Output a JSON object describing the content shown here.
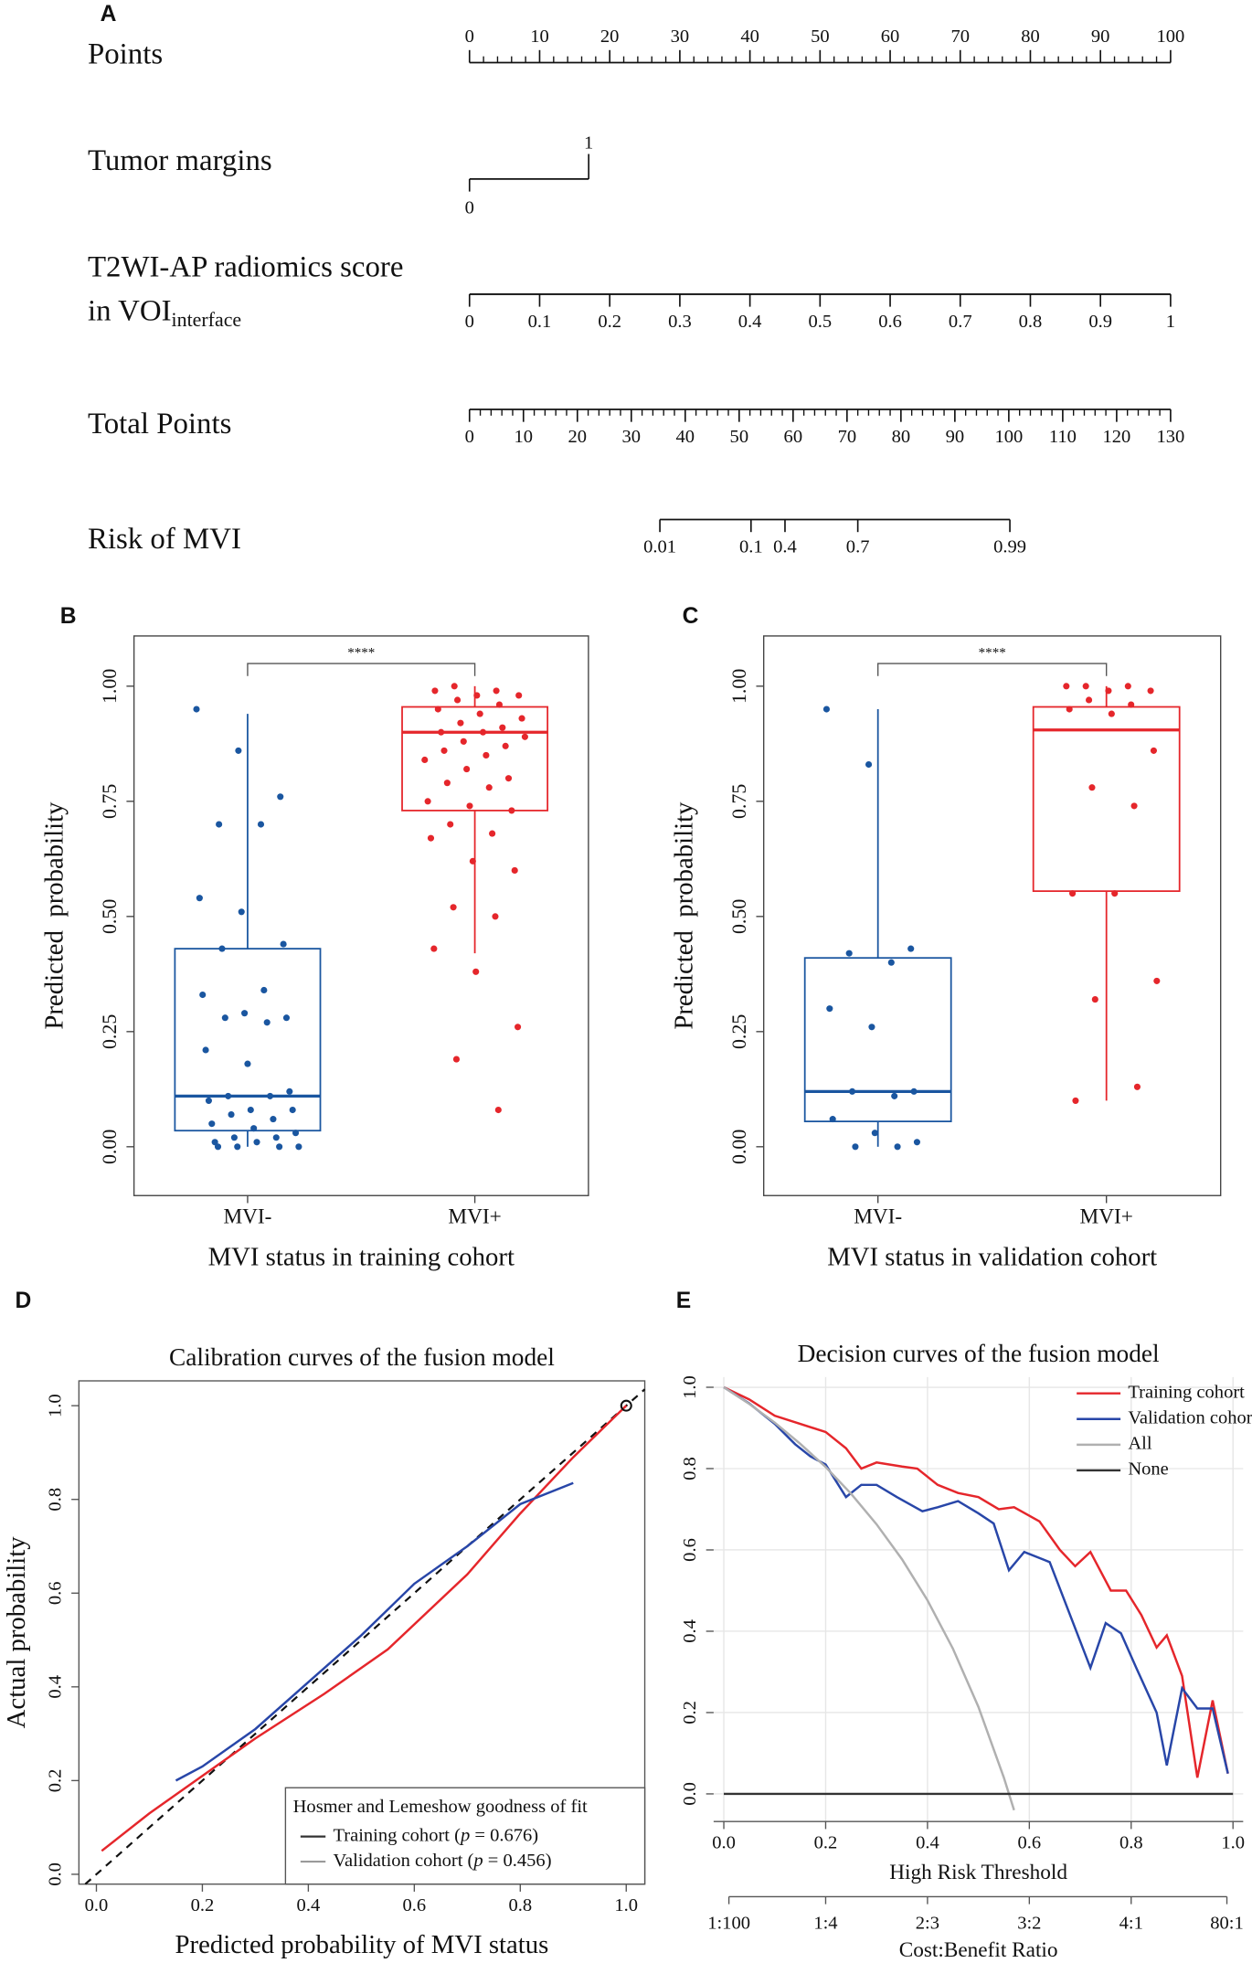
{
  "chart_data": [
    {
      "type": "nomogram",
      "panel": "A",
      "xlim": [
        0,
        100
      ],
      "total_lim": [
        0,
        130
      ],
      "rows": [
        {
          "label": [
            "Points"
          ],
          "ticks": [
            0,
            10,
            20,
            30,
            40,
            50,
            60,
            70,
            80,
            90,
            100
          ],
          "at": [
            0,
            10,
            20,
            30,
            40,
            50,
            60,
            70,
            80,
            90,
            100
          ],
          "minor_step": 2,
          "tick_side": "up"
        },
        {
          "label": [
            "Tumor margins"
          ],
          "ticks": [
            0,
            1
          ],
          "at": [
            0,
            17
          ],
          "tick_side": "alternate"
        },
        {
          "label": [
            "T2WI-AP radiomics score",
            "in VOI"
          ],
          "label_sub": "interface",
          "ticks": [
            0,
            0.1,
            0.2,
            0.3,
            0.4,
            0.5,
            0.6,
            0.7,
            0.8,
            0.9,
            1
          ],
          "at": [
            0,
            10,
            20,
            30,
            40,
            50,
            60,
            70,
            80,
            90,
            100
          ],
          "tick_side": "down"
        },
        {
          "label": [
            "Total Points"
          ],
          "scale": "total",
          "ticks": [
            0,
            10,
            20,
            30,
            40,
            50,
            60,
            70,
            80,
            90,
            100,
            110,
            120,
            130
          ],
          "at": [
            0,
            10,
            20,
            30,
            40,
            50,
            60,
            70,
            80,
            90,
            100,
            110,
            120,
            130
          ],
          "minor_step": 2,
          "tick_side": "down"
        },
        {
          "label": [
            "Risk of MVI"
          ],
          "scale": "total",
          "ticks": [
            0.01,
            0.1,
            0.4,
            0.7,
            0.99
          ],
          "at": [
            35.3,
            52.2,
            58.5,
            72,
            100.2
          ],
          "tick_side": "down"
        }
      ]
    },
    {
      "type": "box",
      "panel": "B",
      "categories": [
        "MVI-",
        "MVI+"
      ],
      "colors": [
        "#1a56a0",
        "#e5262b"
      ],
      "boxes": [
        {
          "low": 0,
          "q1": 0.035,
          "median": 0.11,
          "q3": 0.43,
          "high": 0.94
        },
        {
          "low": 0.42,
          "q1": 0.73,
          "median": 0.9,
          "q3": 0.955,
          "high": 1.0
        }
      ],
      "points": [
        [
          0.95,
          0.86,
          0.76,
          0.7,
          0.7,
          0.54,
          0.51,
          0.44,
          0.43,
          0.34,
          0.33,
          0.29,
          0.28,
          0.28,
          0.27,
          0.21,
          0.18,
          0.12,
          0.11,
          0.11,
          0.1,
          0.08,
          0.08,
          0.07,
          0.06,
          0.05,
          0.04,
          0.03,
          0.02,
          0.02,
          0.01,
          0.01,
          0,
          0,
          0,
          0
        ],
        [
          1.0,
          0.99,
          0.99,
          0.98,
          0.98,
          0.97,
          0.96,
          0.95,
          0.94,
          0.93,
          0.92,
          0.91,
          0.9,
          0.9,
          0.89,
          0.88,
          0.87,
          0.86,
          0.85,
          0.84,
          0.82,
          0.8,
          0.79,
          0.78,
          0.75,
          0.74,
          0.73,
          0.7,
          0.68,
          0.67,
          0.62,
          0.6,
          0.52,
          0.5,
          0.43,
          0.38,
          0.26,
          0.19,
          0.08
        ]
      ],
      "ylim": [
        -0.106,
        1.109
      ],
      "yticks": [
        {
          "value": 0,
          "label": "0.00"
        },
        {
          "value": 0.25,
          "label": "0.25"
        },
        {
          "value": 0.5,
          "label": "0.50"
        },
        {
          "value": 0.75,
          "label": "0.75"
        },
        {
          "value": 1,
          "label": "1.00"
        }
      ],
      "ylabel": "Predicted  probability",
      "xlabel": "MVI status in training cohort",
      "annotation": "****"
    },
    {
      "type": "box",
      "panel": "C",
      "categories": [
        "MVI-",
        "MVI+"
      ],
      "colors": [
        "#1a56a0",
        "#e5262b"
      ],
      "boxes": [
        {
          "low": 0,
          "q1": 0.055,
          "median": 0.12,
          "q3": 0.41,
          "high": 0.95
        },
        {
          "low": 0.1,
          "q1": 0.555,
          "median": 0.905,
          "q3": 0.955,
          "high": 1.0
        }
      ],
      "points": [
        [
          0.95,
          0.83,
          0.43,
          0.42,
          0.4,
          0.3,
          0.26,
          0.12,
          0.12,
          0.11,
          0.06,
          0.03,
          0.01,
          0,
          0
        ],
        [
          1.0,
          1.0,
          1.0,
          0.99,
          0.99,
          0.97,
          0.96,
          0.95,
          0.94,
          0.86,
          0.78,
          0.74,
          0.55,
          0.55,
          0.36,
          0.32,
          0.13,
          0.1
        ]
      ],
      "ylim": [
        -0.106,
        1.109
      ],
      "yticks": [
        {
          "value": 0,
          "label": "0.00"
        },
        {
          "value": 0.25,
          "label": "0.25"
        },
        {
          "value": 0.5,
          "label": "0.50"
        },
        {
          "value": 0.75,
          "label": "0.75"
        },
        {
          "value": 1,
          "label": "1.00"
        }
      ],
      "ylabel": "Predicted  probability",
      "xlabel": "MVI status in validation cohort",
      "annotation": "****"
    },
    {
      "type": "line",
      "panel": "D",
      "title": "Calibration curves of the fusion model",
      "xlabel": "Predicted probability of MVI status",
      "ylabel": "Actual probability",
      "xlim": [
        -0.033,
        1.035
      ],
      "ylim": [
        -0.021,
        1.053
      ],
      "xticks": [
        {
          "value": 0,
          "label": "0.0"
        },
        {
          "value": 0.2,
          "label": "0.2"
        },
        {
          "value": 0.4,
          "label": "0.4"
        },
        {
          "value": 0.6,
          "label": "0.6"
        },
        {
          "value": 0.8,
          "label": "0.8"
        },
        {
          "value": 1,
          "label": "1.0"
        }
      ],
      "yticks": [
        {
          "value": 0,
          "label": "0.0"
        },
        {
          "value": 0.2,
          "label": "0.2"
        },
        {
          "value": 0.4,
          "label": "0.4"
        },
        {
          "value": 0.6,
          "label": "0.6"
        },
        {
          "value": 0.8,
          "label": "0.8"
        },
        {
          "value": 1,
          "label": "1.0"
        }
      ],
      "frame": true,
      "diagonal": "dashed",
      "series": [
        {
          "color": "#e5262b",
          "x": [
            0.01,
            0.1,
            0.2,
            0.3,
            0.43,
            0.55,
            0.7,
            0.8,
            0.9,
            1.0
          ],
          "values": [
            0.05,
            0.13,
            0.21,
            0.29,
            0.385,
            0.48,
            0.64,
            0.77,
            0.89,
            1.0
          ],
          "end_marker": true
        },
        {
          "color": "#2846a8",
          "x": [
            0.15,
            0.2,
            0.3,
            0.4,
            0.5,
            0.6,
            0.7,
            0.8,
            0.9
          ],
          "values": [
            0.2,
            0.23,
            0.31,
            0.41,
            0.51,
            0.62,
            0.7,
            0.79,
            0.835
          ]
        }
      ],
      "legend": {
        "title": "Hosmer and Lemeshow goodness of fit",
        "entries": [
          {
            "text": [
              "Training cohort (",
              "p",
              " = 0.676)"
            ],
            "color": "#333333"
          },
          {
            "text": [
              "Validation cohort (",
              "p",
              " = 0.456)"
            ],
            "color": "#9a9a9a"
          }
        ]
      }
    },
    {
      "type": "line",
      "panel": "E",
      "title": "Decision curves of the fusion model",
      "xlabel": "High Risk Threshold",
      "x2label": "Cost:Benefit Ratio",
      "xlim": [
        -0.02,
        1.02
      ],
      "ylim": [
        -0.068,
        1.025
      ],
      "xticks": [
        {
          "value": 0,
          "label": "0.0"
        },
        {
          "value": 0.2,
          "label": "0.2"
        },
        {
          "value": 0.4,
          "label": "0.4"
        },
        {
          "value": 0.6,
          "label": "0.6"
        },
        {
          "value": 0.8,
          "label": "0.8"
        },
        {
          "value": 1,
          "label": "1.0"
        }
      ],
      "x2ticks": [
        {
          "value": 0.01,
          "label": "1:100"
        },
        {
          "value": 0.2,
          "label": "1:4"
        },
        {
          "value": 0.4,
          "label": "2:3"
        },
        {
          "value": 0.6,
          "label": "3:2"
        },
        {
          "value": 0.8,
          "label": "4:1"
        },
        {
          "value": 0.988,
          "label": "80:1"
        }
      ],
      "yticks": [
        {
          "value": 0,
          "label": "0.0"
        },
        {
          "value": 0.2,
          "label": "0.2"
        },
        {
          "value": 0.4,
          "label": "0.4"
        },
        {
          "value": 0.6,
          "label": "0.6"
        },
        {
          "value": 0.8,
          "label": "0.8"
        },
        {
          "value": 1,
          "label": "1.0"
        }
      ],
      "grid": true,
      "legend": "top-right",
      "series": [
        {
          "name": "Training cohort",
          "color": "#e5262b",
          "x": [
            0,
            0.05,
            0.1,
            0.15,
            0.2,
            0.24,
            0.27,
            0.3,
            0.35,
            0.38,
            0.42,
            0.46,
            0.5,
            0.54,
            0.57,
            0.62,
            0.66,
            0.69,
            0.72,
            0.76,
            0.79,
            0.82,
            0.85,
            0.87,
            0.9,
            0.93,
            0.96,
            0.99
          ],
          "values": [
            1.0,
            0.97,
            0.93,
            0.91,
            0.89,
            0.85,
            0.8,
            0.815,
            0.805,
            0.8,
            0.76,
            0.74,
            0.73,
            0.7,
            0.705,
            0.67,
            0.6,
            0.56,
            0.595,
            0.5,
            0.5,
            0.44,
            0.36,
            0.39,
            0.29,
            0.04,
            0.23,
            0.05
          ]
        },
        {
          "name": "Validation cohort",
          "color": "#2846a8",
          "x": [
            0,
            0.05,
            0.1,
            0.14,
            0.17,
            0.2,
            0.24,
            0.27,
            0.3,
            0.34,
            0.39,
            0.42,
            0.46,
            0.5,
            0.53,
            0.56,
            0.59,
            0.64,
            0.68,
            0.72,
            0.75,
            0.78,
            0.81,
            0.85,
            0.87,
            0.9,
            0.93,
            0.96,
            0.99
          ],
          "values": [
            1.0,
            0.96,
            0.91,
            0.86,
            0.83,
            0.81,
            0.73,
            0.76,
            0.76,
            0.73,
            0.695,
            0.705,
            0.72,
            0.69,
            0.665,
            0.55,
            0.595,
            0.57,
            0.44,
            0.31,
            0.42,
            0.395,
            0.31,
            0.2,
            0.07,
            0.26,
            0.21,
            0.21,
            0.05
          ]
        },
        {
          "name": "All",
          "color": "#b0b0b0",
          "x": [
            0,
            0.05,
            0.1,
            0.15,
            0.2,
            0.25,
            0.3,
            0.35,
            0.4,
            0.45,
            0.5,
            0.55,
            0.57
          ],
          "values": [
            1.0,
            0.959,
            0.913,
            0.861,
            0.804,
            0.738,
            0.663,
            0.577,
            0.476,
            0.357,
            0.214,
            0.04,
            -0.04
          ]
        },
        {
          "name": "None",
          "color": "#333333",
          "x": [
            0,
            1
          ],
          "values": [
            0,
            0
          ]
        }
      ]
    }
  ]
}
